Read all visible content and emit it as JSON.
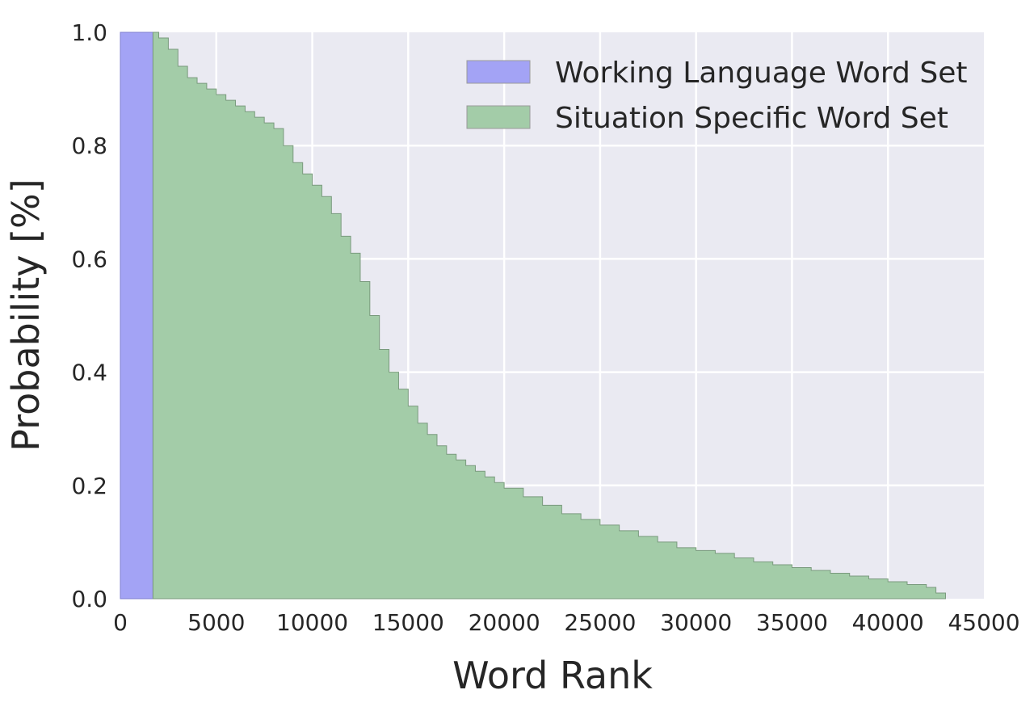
{
  "chart_data": {
    "type": "area",
    "title": "",
    "xlabel": "Word Rank",
    "ylabel": "Probability [%]",
    "xlim": [
      0,
      45000
    ],
    "ylim": [
      0,
      1.0
    ],
    "xticks": [
      0,
      5000,
      10000,
      15000,
      20000,
      25000,
      30000,
      35000,
      40000,
      45000
    ],
    "yticks": [
      0.0,
      0.2,
      0.4,
      0.6,
      0.8,
      1.0
    ],
    "xtick_labels": [
      "0",
      "5000",
      "10000",
      "15000",
      "20000",
      "25000",
      "30000",
      "35000",
      "40000",
      "45000"
    ],
    "ytick_labels": [
      "0.0",
      "0.2",
      "0.4",
      "0.6",
      "0.8",
      "1.0"
    ],
    "grid": true,
    "legend_position": "top-right",
    "series": [
      {
        "name": "Working Language Word Set",
        "color": "#a3a3f5",
        "x": [
          0,
          1700
        ],
        "y": [
          1.0,
          1.0
        ]
      },
      {
        "name": "Situation Specific Word Set",
        "color": "#a3cca8",
        "x": [
          1700,
          2000,
          2500,
          3000,
          3500,
          4000,
          4500,
          5000,
          5500,
          6000,
          6500,
          7000,
          7500,
          8000,
          8500,
          9000,
          9500,
          10000,
          10500,
          11000,
          11500,
          12000,
          12500,
          13000,
          13500,
          14000,
          14500,
          15000,
          15500,
          16000,
          16500,
          17000,
          17500,
          18000,
          18500,
          19000,
          19500,
          20000,
          21000,
          22000,
          23000,
          24000,
          25000,
          26000,
          27000,
          28000,
          29000,
          30000,
          31000,
          32000,
          33000,
          34000,
          35000,
          36000,
          37000,
          38000,
          39000,
          40000,
          41000,
          42000,
          42500,
          43000
        ],
        "y": [
          1.0,
          0.99,
          0.97,
          0.94,
          0.92,
          0.91,
          0.9,
          0.89,
          0.88,
          0.87,
          0.86,
          0.85,
          0.84,
          0.83,
          0.8,
          0.77,
          0.75,
          0.73,
          0.71,
          0.68,
          0.64,
          0.61,
          0.56,
          0.5,
          0.44,
          0.4,
          0.37,
          0.34,
          0.31,
          0.29,
          0.27,
          0.255,
          0.245,
          0.235,
          0.225,
          0.215,
          0.205,
          0.195,
          0.18,
          0.165,
          0.15,
          0.14,
          0.13,
          0.12,
          0.11,
          0.1,
          0.09,
          0.085,
          0.08,
          0.072,
          0.065,
          0.06,
          0.055,
          0.05,
          0.045,
          0.04,
          0.035,
          0.03,
          0.025,
          0.02,
          0.01,
          0.0
        ]
      }
    ]
  }
}
